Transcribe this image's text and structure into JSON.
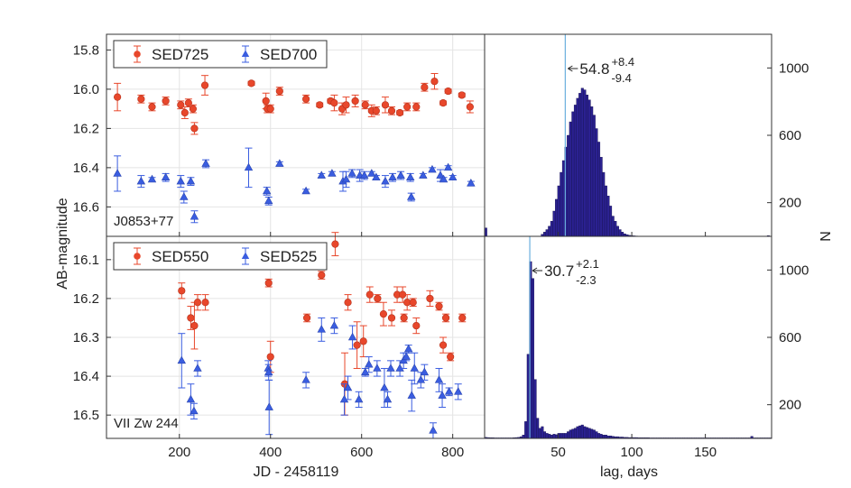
{
  "figure": {
    "ylabel_left": "AB-magnitude",
    "ylabel_right": "N",
    "xlabel_left": "JD - 2458119",
    "xlabel_right": "lag, days"
  },
  "colors": {
    "red": "#e8472b",
    "blue": "#3a5de0",
    "hist": "#2b2191",
    "hist_edge": "#14104f",
    "line": "#6ab0de"
  },
  "chart_data": [
    {
      "id": "lc_top",
      "type": "scatter",
      "object_label": "J0853+77",
      "xlim": [
        40,
        870
      ],
      "ylim": [
        16.75,
        15.72
      ],
      "yticks": [
        15.8,
        16.0,
        16.2,
        16.4,
        16.6
      ],
      "ytick_labels": [
        "15.8",
        "16.0",
        "16.2",
        "16.4",
        "16.6"
      ],
      "xticks": [
        200,
        400,
        600,
        800
      ],
      "xtick_labels": [
        "",
        "",
        "",
        ""
      ],
      "legend": [
        "SED725",
        "SED700"
      ],
      "series": [
        {
          "name": "SED725",
          "marker": "circle",
          "color": "#e8472b",
          "points": [
            [
              64,
              16.04,
              0.07
            ],
            [
              116,
              16.05,
              0.02
            ],
            [
              140,
              16.09,
              0.02
            ],
            [
              170,
              16.06,
              0.02
            ],
            [
              203,
              16.08,
              0.02
            ],
            [
              212,
              16.12,
              0.03
            ],
            [
              220,
              16.07,
              0.02
            ],
            [
              230,
              16.1,
              0.02
            ],
            [
              233,
              16.2,
              0.03
            ],
            [
              256,
              15.98,
              0.05
            ],
            [
              358,
              15.97,
              0.01
            ],
            [
              390,
              16.06,
              0.04
            ],
            [
              393,
              16.1,
              0.02
            ],
            [
              400,
              16.1,
              0.02
            ],
            [
              420,
              16.01,
              0.02
            ],
            [
              478,
              16.05,
              0.02
            ],
            [
              508,
              16.08,
              0.01
            ],
            [
              532,
              16.06,
              0.01
            ],
            [
              540,
              16.07,
              0.04
            ],
            [
              557,
              16.1,
              0.03
            ],
            [
              566,
              16.08,
              0.04
            ],
            [
              586,
              16.06,
              0.03
            ],
            [
              608,
              16.08,
              0.02
            ],
            [
              622,
              16.11,
              0.03
            ],
            [
              632,
              16.11,
              0.02
            ],
            [
              652,
              16.08,
              0.04
            ],
            [
              666,
              16.11,
              0.02
            ],
            [
              684,
              16.12,
              0.01
            ],
            [
              700,
              16.09,
              0.02
            ],
            [
              720,
              16.09,
              0.02
            ],
            [
              738,
              15.99,
              0.02
            ],
            [
              760,
              15.96,
              0.04
            ],
            [
              779,
              16.07,
              0.01
            ],
            [
              790,
              16.01,
              0.01
            ],
            [
              820,
              16.03,
              0.01
            ],
            [
              838,
              16.09,
              0.03
            ]
          ]
        },
        {
          "name": "SED700",
          "marker": "triangle",
          "color": "#3a5de0",
          "points": [
            [
              64,
              16.43,
              0.09
            ],
            [
              116,
              16.47,
              0.03
            ],
            [
              140,
              16.46,
              0.01
            ],
            [
              170,
              16.45,
              0.02
            ],
            [
              203,
              16.47,
              0.03
            ],
            [
              210,
              16.55,
              0.03
            ],
            [
              225,
              16.47,
              0.02
            ],
            [
              233,
              16.65,
              0.03
            ],
            [
              258,
              16.38,
              0.02
            ],
            [
              352,
              16.4,
              0.1
            ],
            [
              392,
              16.52,
              0.02
            ],
            [
              396,
              16.57,
              0.02
            ],
            [
              420,
              16.38,
              0.01
            ],
            [
              478,
              16.52,
              0.01
            ],
            [
              512,
              16.44,
              0.01
            ],
            [
              535,
              16.43,
              0.01
            ],
            [
              559,
              16.47,
              0.05
            ],
            [
              566,
              16.46,
              0.04
            ],
            [
              579,
              16.43,
              0.02
            ],
            [
              596,
              16.44,
              0.03
            ],
            [
              606,
              16.44,
              0.02
            ],
            [
              622,
              16.43,
              0.01
            ],
            [
              632,
              16.45,
              0.01
            ],
            [
              652,
              16.47,
              0.03
            ],
            [
              668,
              16.45,
              0.02
            ],
            [
              686,
              16.44,
              0.02
            ],
            [
              707,
              16.45,
              0.02
            ],
            [
              709,
              16.55,
              0.02
            ],
            [
              735,
              16.44,
              0.01
            ],
            [
              755,
              16.41,
              0.01
            ],
            [
              773,
              16.44,
              0.03
            ],
            [
              780,
              16.46,
              0.01
            ],
            [
              790,
              16.4,
              0.01
            ],
            [
              800,
              16.45,
              0.01
            ],
            [
              840,
              16.48,
              0.01
            ]
          ]
        }
      ]
    },
    {
      "id": "lc_bottom",
      "type": "scatter",
      "object_label": "VII Zw 244",
      "xlim": [
        40,
        870
      ],
      "ylim": [
        16.56,
        16.04
      ],
      "yticks": [
        16.1,
        16.2,
        16.3,
        16.4,
        16.5
      ],
      "ytick_labels": [
        "16.1",
        "16.2",
        "16.3",
        "16.4",
        "16.5"
      ],
      "xticks": [
        200,
        400,
        600,
        800
      ],
      "xtick_labels": [
        "200",
        "400",
        "600",
        "800"
      ],
      "legend": [
        "SED550",
        "SED525"
      ],
      "series": [
        {
          "name": "SED550",
          "marker": "circle",
          "color": "#e8472b",
          "points": [
            [
              205,
              16.18,
              0.02
            ],
            [
              225,
              16.25,
              0.03
            ],
            [
              233,
              16.27,
              0.06
            ],
            [
              240,
              16.21,
              0.02
            ],
            [
              257,
              16.21,
              0.02
            ],
            [
              396,
              16.16,
              0.01
            ],
            [
              400,
              16.35,
              0.04
            ],
            [
              480,
              16.25,
              0.01
            ],
            [
              512,
              16.14,
              0.01
            ],
            [
              542,
              16.06,
              0.03
            ],
            [
              563,
              16.42,
              0.08
            ],
            [
              570,
              16.21,
              0.02
            ],
            [
              590,
              16.32,
              0.06
            ],
            [
              604,
              16.31,
              0.04
            ],
            [
              618,
              16.19,
              0.02
            ],
            [
              635,
              16.2,
              0.01
            ],
            [
              648,
              16.24,
              0.03
            ],
            [
              666,
              16.25,
              0.02
            ],
            [
              678,
              16.19,
              0.02
            ],
            [
              690,
              16.19,
              0.02
            ],
            [
              693,
              16.25,
              0.01
            ],
            [
              700,
              16.21,
              0.02
            ],
            [
              713,
              16.21,
              0.01
            ],
            [
              720,
              16.27,
              0.02
            ],
            [
              750,
              16.2,
              0.02
            ],
            [
              770,
              16.22,
              0.01
            ],
            [
              779,
              16.32,
              0.02
            ],
            [
              785,
              16.25,
              0.01
            ],
            [
              795,
              16.35,
              0.01
            ],
            [
              821,
              16.25,
              0.01
            ]
          ]
        },
        {
          "name": "SED525",
          "marker": "triangle",
          "color": "#3a5de0",
          "points": [
            [
              205,
              16.36,
              0.07
            ],
            [
              225,
              16.46,
              0.04
            ],
            [
              232,
              16.49,
              0.02
            ],
            [
              240,
              16.38,
              0.02
            ],
            [
              395,
              16.38,
              0.02
            ],
            [
              397,
              16.48,
              0.07
            ],
            [
              396,
              16.39,
              0.02
            ],
            [
              478,
              16.41,
              0.02
            ],
            [
              512,
              16.28,
              0.03
            ],
            [
              540,
              16.27,
              0.02
            ],
            [
              562,
              16.46,
              0.04
            ],
            [
              570,
              16.43,
              0.03
            ],
            [
              580,
              16.3,
              0.03
            ],
            [
              594,
              16.46,
              0.02
            ],
            [
              608,
              16.39,
              0.01
            ],
            [
              616,
              16.37,
              0.02
            ],
            [
              634,
              16.38,
              0.02
            ],
            [
              650,
              16.43,
              0.05
            ],
            [
              657,
              16.46,
              0.02
            ],
            [
              664,
              16.38,
              0.02
            ],
            [
              684,
              16.38,
              0.02
            ],
            [
              692,
              16.36,
              0.02
            ],
            [
              698,
              16.35,
              0.01
            ],
            [
              703,
              16.33,
              0.01
            ],
            [
              710,
              16.45,
              0.04
            ],
            [
              716,
              16.38,
              0.04
            ],
            [
              730,
              16.41,
              0.02
            ],
            [
              738,
              16.39,
              0.02
            ],
            [
              757,
              16.54,
              0.02
            ],
            [
              770,
              16.41,
              0.03
            ],
            [
              777,
              16.45,
              0.03
            ],
            [
              792,
              16.44,
              0.01
            ],
            [
              812,
              16.44,
              0.02
            ]
          ]
        }
      ]
    },
    {
      "id": "hist_top",
      "type": "bar",
      "xlim": [
        0,
        195
      ],
      "ylim": [
        0,
        1200
      ],
      "yticks": [
        200,
        600,
        1000
      ],
      "ytick_labels": [
        "200",
        "600",
        "1000"
      ],
      "xticks": [
        50,
        100,
        150
      ],
      "xtick_labels": [
        "",
        "",
        ""
      ],
      "bin_start": 0,
      "bin_width": 1.6,
      "counts": [
        50,
        0,
        0,
        0,
        0,
        0,
        0,
        0,
        0,
        0,
        0,
        0,
        0,
        0,
        0,
        0,
        0,
        0,
        0,
        0,
        0,
        0,
        0,
        0,
        12,
        25,
        40,
        60,
        90,
        150,
        220,
        300,
        380,
        450,
        530,
        600,
        680,
        740,
        780,
        820,
        850,
        880,
        870,
        840,
        810,
        770,
        720,
        640,
        560,
        470,
        380,
        300,
        240,
        180,
        120,
        90,
        60,
        40,
        25,
        15,
        10,
        6,
        4,
        3,
        2,
        1,
        0,
        0,
        0,
        0,
        0,
        0,
        0,
        0,
        0,
        0,
        0,
        0,
        0,
        0,
        0,
        0,
        0,
        0,
        0,
        0,
        0,
        0,
        0,
        0,
        0,
        0,
        0,
        0,
        0,
        0,
        0,
        0,
        0,
        0,
        0,
        0,
        0,
        0,
        0,
        0,
        0,
        0,
        0,
        0,
        0,
        0,
        0,
        0,
        0,
        0,
        0,
        0,
        0,
        0,
        4
      ],
      "marker_x": 54.8,
      "annotation": {
        "value": "54.8",
        "plus": "+8.4",
        "minus": "-9.4"
      }
    },
    {
      "id": "hist_bottom",
      "type": "bar",
      "xlim": [
        0,
        195
      ],
      "ylim": [
        0,
        1200
      ],
      "yticks": [
        200,
        600,
        1000
      ],
      "ytick_labels": [
        "200",
        "600",
        "1000"
      ],
      "xticks": [
        50,
        100,
        150
      ],
      "xtick_labels": [
        "50",
        "100",
        "150"
      ],
      "bin_start": 0,
      "bin_width": 1.6,
      "counts": [
        6,
        5,
        4,
        4,
        3,
        3,
        3,
        3,
        3,
        3,
        3,
        3,
        4,
        5,
        6,
        10,
        20,
        100,
        500,
        1050,
        950,
        350,
        120,
        60,
        70,
        40,
        30,
        25,
        20,
        25,
        22,
        30,
        30,
        30,
        30,
        40,
        50,
        55,
        60,
        70,
        75,
        80,
        70,
        65,
        60,
        55,
        50,
        40,
        30,
        25,
        20,
        20,
        15,
        15,
        12,
        10,
        10,
        8,
        8,
        6,
        6,
        5,
        5,
        5,
        5,
        4,
        4,
        4,
        4,
        4,
        3,
        3,
        3,
        3,
        3,
        3,
        3,
        3,
        3,
        3,
        3,
        3,
        3,
        3,
        3,
        3,
        3,
        3,
        3,
        3,
        3,
        3,
        3,
        3,
        3,
        3,
        3,
        3,
        3,
        3,
        3,
        3,
        3,
        3,
        3,
        3,
        3,
        3,
        3,
        3,
        3,
        3,
        3,
        12,
        3,
        3,
        3,
        3,
        3,
        3,
        3,
        3
      ],
      "marker_x": 30.7,
      "annotation": {
        "value": "30.7",
        "plus": "+2.1",
        "minus": "-2.3"
      }
    }
  ]
}
